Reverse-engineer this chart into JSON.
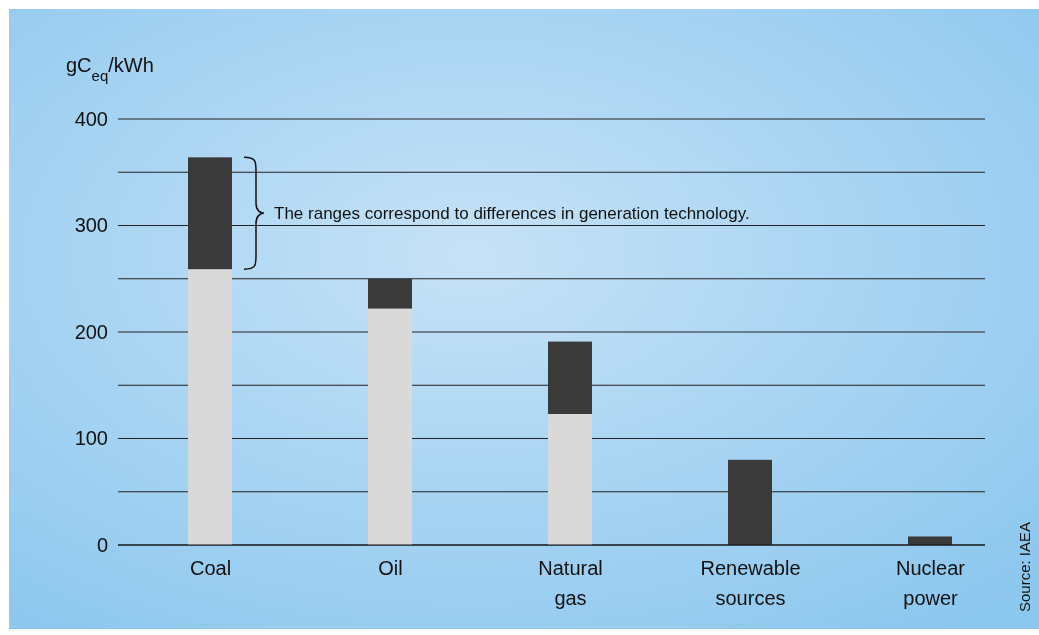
{
  "chart_data": {
    "type": "bar",
    "stacked": true,
    "ylabel": "gC$_{eq}$/kWh",
    "categories": [
      "Coal",
      "Oil",
      "Natural gas",
      "Renewable sources",
      "Nuclear power"
    ],
    "series": [
      {
        "color": "#d9d9d9",
        "values": [
          259,
          222,
          123,
          0,
          0
        ]
      },
      {
        "color": "#3a3a3a",
        "values": [
          105,
          28,
          68,
          80,
          8
        ]
      }
    ],
    "ylim": [
      0,
      400
    ],
    "yticks": [
      0,
      {
        "value": 50,
        "label": null
      },
      100,
      {
        "value": 150,
        "label": null
      },
      200,
      {
        "value": 250,
        "label": null
      },
      300,
      {
        "value": 350,
        "label": null
      },
      400
    ],
    "grid": "y",
    "annotations": [
      "The ranges correspond to differences in generation technology.",
      "Source: IAEA"
    ]
  }
}
